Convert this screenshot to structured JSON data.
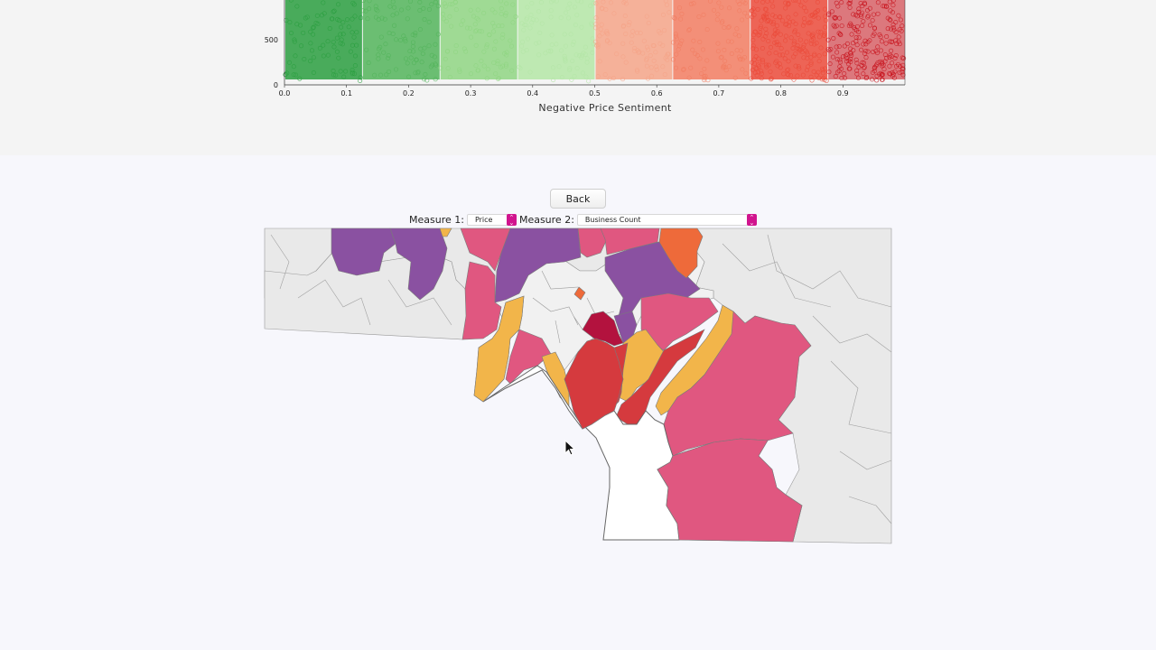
{
  "chart_data": {
    "type": "scatter",
    "title": "",
    "xlabel": "Negative Price Sentiment",
    "ylabel": "",
    "xlim": [
      0.0,
      1.0
    ],
    "x_ticks": [
      "0.0",
      "0.1",
      "0.2",
      "0.3",
      "0.4",
      "0.5",
      "0.6",
      "0.7",
      "0.8",
      "0.9"
    ],
    "y_ticks": [
      "0",
      "500"
    ],
    "bands": [
      {
        "from": 0.0,
        "to": 0.125,
        "color": "#2a9e3f"
      },
      {
        "from": 0.125,
        "to": 0.25,
        "color": "#52b45a"
      },
      {
        "from": 0.25,
        "to": 0.375,
        "color": "#8fd582"
      },
      {
        "from": 0.375,
        "to": 0.5,
        "color": "#b4e6a6"
      },
      {
        "from": 0.5,
        "to": 0.625,
        "color": "#f5a488"
      },
      {
        "from": 0.625,
        "to": 0.75,
        "color": "#f27d62"
      },
      {
        "from": 0.75,
        "to": 0.875,
        "color": "#eb4a3a"
      },
      {
        "from": 0.875,
        "to": 1.0,
        "color": "#c8121c"
      }
    ]
  },
  "controls": {
    "back_label": "Back",
    "measure1_label": "Measure 1:",
    "measure1_value": "Price",
    "measure2_label": "Measure 2:",
    "measure2_value": "Business Count",
    "arrow_up": "⌃",
    "arrow_down": "⌄"
  },
  "map": {
    "colors": {
      "purple": "#8a51a1",
      "pink": "#e05780",
      "yellow": "#f2b54a",
      "red": "#d53a3e",
      "crimson": "#b3123e",
      "orange": "#ee6a3a",
      "gray": "#e9e9e9",
      "background": "#f7f7fc"
    }
  }
}
